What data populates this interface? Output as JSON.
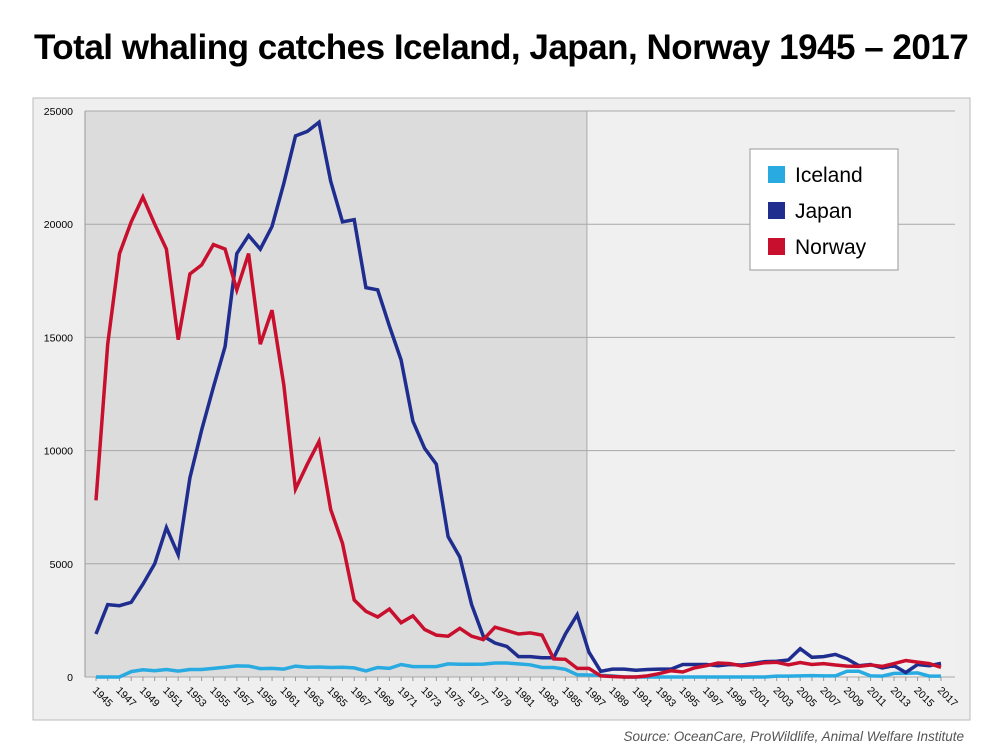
{
  "chart_data": {
    "type": "line",
    "title": "Total whaling catches Iceland, Japan, Norway 1945 – 2017",
    "source": "Source: OceanCare, ProWildlife, Animal Welfare Institute",
    "xlabel": "",
    "ylabel": "",
    "ylim": [
      0,
      25000
    ],
    "yticks": [
      "0",
      "5000",
      "10000",
      "15000",
      "20000",
      "25000"
    ],
    "x_start": 1945,
    "x_end": 2017,
    "grid": true,
    "shaded_period": [
      1945,
      1987
    ],
    "legend_position": "top-right",
    "series": [
      {
        "name": "Iceland",
        "color": "#29abe2",
        "values": [
          0,
          0,
          0,
          240,
          320,
          280,
          330,
          260,
          330,
          330,
          380,
          430,
          490,
          480,
          370,
          380,
          350,
          480,
          430,
          440,
          420,
          430,
          400,
          270,
          420,
          380,
          550,
          460,
          460,
          460,
          580,
          560,
          560,
          570,
          620,
          620,
          580,
          540,
          420,
          420,
          340,
          100,
          90,
          70,
          50,
          0,
          0,
          0,
          0,
          0,
          0,
          0,
          0,
          0,
          0,
          0,
          0,
          0,
          40,
          40,
          50,
          60,
          50,
          50,
          250,
          250,
          50,
          40,
          160,
          160,
          180,
          40,
          40
        ]
      },
      {
        "name": "Japan",
        "color": "#1f2d8f",
        "values": [
          1900,
          3200,
          3150,
          3300,
          4100,
          5000,
          6600,
          5400,
          8800,
          10900,
          12800,
          14600,
          18700,
          19500,
          18900,
          19900,
          21800,
          23900,
          24100,
          24500,
          21900,
          20100,
          20200,
          17200,
          17100,
          15500,
          14000,
          11300,
          10100,
          9400,
          6200,
          5300,
          3200,
          1800,
          1500,
          1350,
          900,
          900,
          850,
          850,
          1900,
          2750,
          1100,
          250,
          350,
          350,
          300,
          330,
          350,
          350,
          550,
          550,
          550,
          500,
          550,
          530,
          600,
          680,
          700,
          750,
          1250,
          870,
          900,
          1000,
          800,
          500,
          550,
          400,
          500,
          200,
          550,
          500,
          600
        ]
      },
      {
        "name": "Norway",
        "color": "#c8102e",
        "values": [
          7800,
          14700,
          18700,
          20100,
          21200,
          20000,
          18900,
          14900,
          17800,
          18200,
          19100,
          18900,
          17100,
          18700,
          14700,
          16200,
          12900,
          8300,
          9400,
          10400,
          7400,
          5900,
          3400,
          2900,
          2650,
          3000,
          2400,
          2700,
          2100,
          1850,
          1800,
          2150,
          1800,
          1650,
          2200,
          2050,
          1900,
          1950,
          1850,
          800,
          780,
          380,
          380,
          50,
          20,
          0,
          0,
          50,
          150,
          280,
          220,
          400,
          500,
          620,
          590,
          490,
          550,
          630,
          650,
          540,
          640,
          550,
          590,
          530,
          480,
          470,
          530,
          470,
          590,
          730,
          660,
          590,
          430
        ]
      }
    ]
  }
}
